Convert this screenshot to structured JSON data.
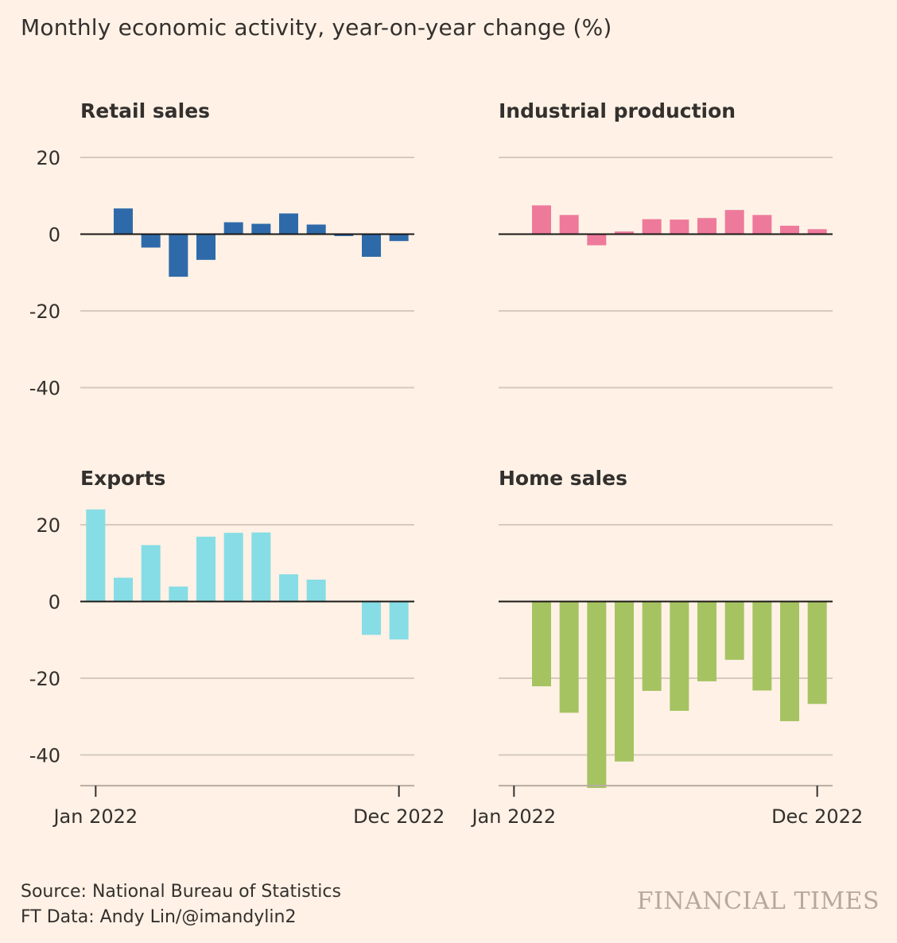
{
  "title": "Monthly economic activity, year-on-year change (%)",
  "source": "Source: National Bureau of Statistics",
  "credit": "FT Data: Andy Lin/@imandylin2",
  "brand": "FINANCIAL TIMES",
  "chart_data": [
    {
      "type": "bar",
      "title": "Retail sales",
      "color": "#2e6aa9",
      "categories": [
        "Jan 2022",
        "Feb 2022",
        "Mar 2022",
        "Apr 2022",
        "May 2022",
        "Jun 2022",
        "Jul 2022",
        "Aug 2022",
        "Sep 2022",
        "Oct 2022",
        "Nov 2022",
        "Dec 2022"
      ],
      "values": [
        null,
        6.7,
        -3.5,
        -11.1,
        -6.7,
        3.1,
        2.7,
        5.4,
        2.5,
        -0.5,
        -5.9,
        -1.8
      ],
      "yticks": [
        20,
        0,
        -20,
        -40
      ],
      "ylim": [
        -48,
        20
      ],
      "xticks": [
        "Jan 2022",
        "Dec 2022"
      ],
      "grid": true
    },
    {
      "type": "bar",
      "title": "Industrial production",
      "color": "#ee7a9b",
      "categories": [
        "Jan 2022",
        "Feb 2022",
        "Mar 2022",
        "Apr 2022",
        "May 2022",
        "Jun 2022",
        "Jul 2022",
        "Aug 2022",
        "Sep 2022",
        "Oct 2022",
        "Nov 2022",
        "Dec 2022"
      ],
      "values": [
        null,
        7.5,
        5.0,
        -2.9,
        0.7,
        3.9,
        3.8,
        4.2,
        6.3,
        5.0,
        2.2,
        1.3
      ],
      "yticks": [
        20,
        0,
        -20,
        -40
      ],
      "ylim": [
        -48,
        20
      ],
      "xticks": [
        "Jan 2022",
        "Dec 2022"
      ],
      "grid": true
    },
    {
      "type": "bar",
      "title": "Exports",
      "color": "#86dde5",
      "categories": [
        "Jan 2022",
        "Feb 2022",
        "Mar 2022",
        "Apr 2022",
        "May 2022",
        "Jun 2022",
        "Jul 2022",
        "Aug 2022",
        "Sep 2022",
        "Oct 2022",
        "Nov 2022",
        "Dec 2022"
      ],
      "values": [
        24.0,
        6.2,
        14.7,
        3.9,
        16.9,
        17.9,
        18.0,
        7.1,
        5.7,
        null,
        -8.7,
        -9.9
      ],
      "yticks": [
        20,
        0,
        -20,
        -40
      ],
      "ylim": [
        -48,
        20
      ],
      "xticks": [
        "Jan 2022",
        "Dec 2022"
      ],
      "grid": true
    },
    {
      "type": "bar",
      "title": "Home sales",
      "color": "#a6c362",
      "categories": [
        "Jan 2022",
        "Feb 2022",
        "Mar 2022",
        "Apr 2022",
        "May 2022",
        "Jun 2022",
        "Jul 2022",
        "Aug 2022",
        "Sep 2022",
        "Oct 2022",
        "Nov 2022",
        "Dec 2022"
      ],
      "values": [
        null,
        -22.1,
        -29.0,
        -48.6,
        -41.7,
        -23.3,
        -28.5,
        -20.8,
        -15.2,
        -23.2,
        -31.2,
        -26.7
      ],
      "yticks": [
        20,
        0,
        -20,
        -40
      ],
      "ylim": [
        -48,
        20
      ],
      "xticks": [
        "Jan 2022",
        "Dec 2022"
      ],
      "grid": true
    }
  ]
}
